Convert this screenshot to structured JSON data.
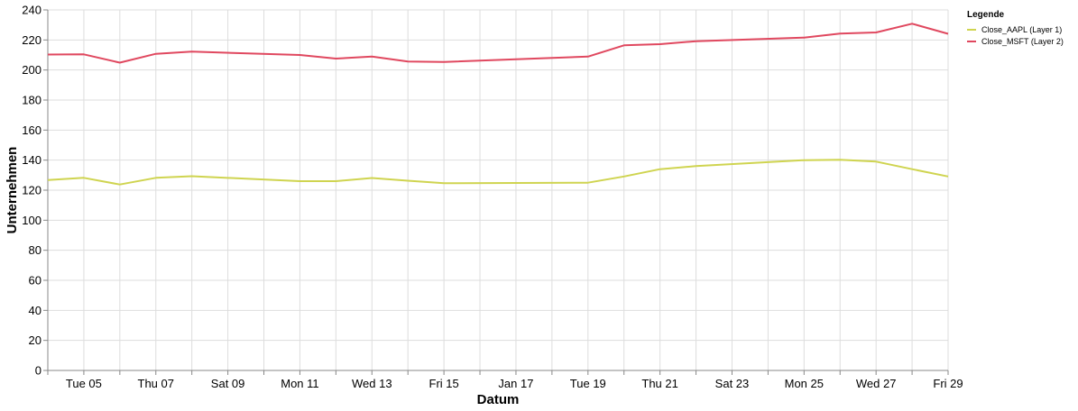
{
  "chart_data": {
    "type": "line",
    "xlabel": "Datum",
    "ylabel": "Unternehmen",
    "ylim": [
      0,
      240
    ],
    "yticks": [
      0,
      20,
      40,
      60,
      80,
      100,
      120,
      140,
      160,
      180,
      200,
      220,
      240
    ],
    "xlim": [
      "2021-01-04",
      "2021-01-29"
    ],
    "xtick_labels": [
      {
        "date": "2021-01-05",
        "label": "Tue 05"
      },
      {
        "date": "2021-01-07",
        "label": "Thu 07"
      },
      {
        "date": "2021-01-09",
        "label": "Sat 09"
      },
      {
        "date": "2021-01-11",
        "label": "Mon 11"
      },
      {
        "date": "2021-01-13",
        "label": "Wed 13"
      },
      {
        "date": "2021-01-15",
        "label": "Fri 15"
      },
      {
        "date": "2021-01-17",
        "label": "Jan 17"
      },
      {
        "date": "2021-01-19",
        "label": "Tue 19"
      },
      {
        "date": "2021-01-21",
        "label": "Thu 21"
      },
      {
        "date": "2021-01-23",
        "label": "Sat 23"
      },
      {
        "date": "2021-01-25",
        "label": "Mon 25"
      },
      {
        "date": "2021-01-27",
        "label": "Wed 27"
      },
      {
        "date": "2021-01-29",
        "label": "Fri 29"
      }
    ],
    "grid": true,
    "legend": {
      "title": "Legende",
      "position": "top-right"
    },
    "series": [
      {
        "name": "Close_AAPL (Layer 1)",
        "color": "#cfd450",
        "x": [
          "2021-01-04",
          "2021-01-05",
          "2021-01-06",
          "2021-01-07",
          "2021-01-08",
          "2021-01-11",
          "2021-01-12",
          "2021-01-13",
          "2021-01-14",
          "2021-01-15",
          "2021-01-19",
          "2021-01-20",
          "2021-01-21",
          "2021-01-22",
          "2021-01-25",
          "2021-01-26",
          "2021-01-27",
          "2021-01-28",
          "2021-01-29"
        ],
        "y": [
          126.8,
          128.2,
          123.8,
          128.2,
          129.3,
          126.0,
          126.0,
          128.1,
          126.3,
          124.6,
          125.0,
          129.1,
          134.0,
          136.0,
          140.0,
          140.3,
          139.0,
          134.0,
          129.1
        ]
      },
      {
        "name": "Close_MSFT (Layer 2)",
        "color": "#e0485f",
        "x": [
          "2021-01-04",
          "2021-01-05",
          "2021-01-06",
          "2021-01-07",
          "2021-01-08",
          "2021-01-11",
          "2021-01-12",
          "2021-01-13",
          "2021-01-14",
          "2021-01-15",
          "2021-01-19",
          "2021-01-20",
          "2021-01-21",
          "2021-01-22",
          "2021-01-25",
          "2021-01-26",
          "2021-01-27",
          "2021-01-28",
          "2021-01-29"
        ],
        "y": [
          210.3,
          210.4,
          204.9,
          210.8,
          212.2,
          210.0,
          207.6,
          209.0,
          205.6,
          205.4,
          208.9,
          216.4,
          217.2,
          219.2,
          221.6,
          224.3,
          225.0,
          230.8,
          224.1
        ]
      }
    ]
  }
}
